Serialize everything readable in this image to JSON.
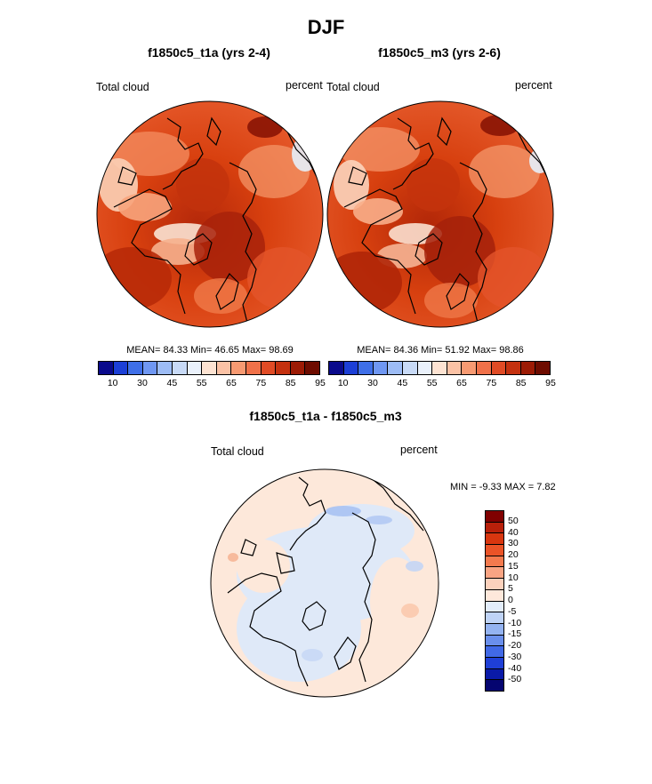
{
  "figure": {
    "title": "DJF",
    "colors": {
      "coast": "#000000"
    }
  },
  "panels": [
    {
      "title": "f1850c5_t1a (yrs 2-4)",
      "left_label": "Total cloud",
      "right_label": "percent",
      "stats": {
        "mean_label": "MEAN=",
        "mean": "84.33",
        "min_label": "Min=",
        "min": "46.65",
        "max_label": "Max=",
        "max": "98.69"
      }
    },
    {
      "title": "f1850c5_m3 (yrs 2-6)",
      "left_label": "Total cloud",
      "right_label": "percent",
      "stats": {
        "mean_label": "MEAN=",
        "mean": "84.36",
        "min_label": "Min=",
        "min": "51.92",
        "max_label": "Max=",
        "max": "98.86"
      }
    },
    {
      "title": "f1850c5_t1a - f1850c5_m3",
      "left_label": "Total cloud",
      "right_label": "percent",
      "stats": {
        "min_label": "MIN =",
        "min": "-9.33",
        "max_label": "MAX =",
        "max": "7.82"
      }
    }
  ],
  "colorbar_top": {
    "ticks": [
      "10",
      "30",
      "45",
      "55",
      "65",
      "75",
      "85",
      "95"
    ],
    "colors": [
      "#0a0a8c",
      "#1c3fd6",
      "#3f6fe8",
      "#6f97f2",
      "#9dbcf5",
      "#c8daf6",
      "#eaf1fb",
      "#fde3d2",
      "#fbc2a5",
      "#f79a72",
      "#f07149",
      "#e04b25",
      "#c4310f",
      "#9c1b05",
      "#6e0c00"
    ]
  },
  "colorbar_diff": {
    "ticks": [
      "50",
      "40",
      "30",
      "20",
      "15",
      "10",
      "5",
      "0",
      "-5",
      "-10",
      "-15",
      "-20",
      "-30",
      "-40",
      "-50"
    ],
    "colors": [
      "#800000",
      "#b8200a",
      "#d8360f",
      "#ea5327",
      "#f47a4e",
      "#f9a483",
      "#fcd1bc",
      "#fee8db",
      "#e3edfb",
      "#bfd3f6",
      "#94b3f1",
      "#6a8fec",
      "#4169e6",
      "#1f3fd6",
      "#0a1aa8",
      "#050570"
    ]
  }
}
